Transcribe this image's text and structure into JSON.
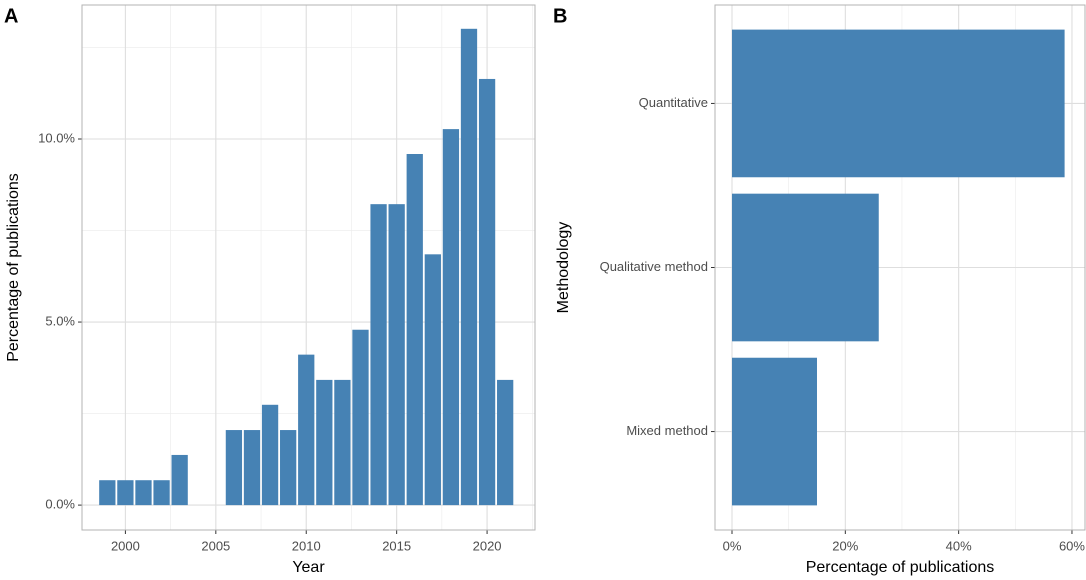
{
  "chart_data": [
    {
      "type": "bar",
      "tag": "A",
      "x_label": "Year",
      "y_label": "Percentage of publications",
      "color": "#4682b4",
      "grid": true,
      "x": [
        1999,
        2000,
        2001,
        2002,
        2003,
        2006,
        2007,
        2008,
        2009,
        2010,
        2011,
        2012,
        2013,
        2014,
        2015,
        2016,
        2017,
        2018,
        2019,
        2020,
        2021
      ],
      "values": [
        0.68,
        0.68,
        0.68,
        0.68,
        1.37,
        2.05,
        2.05,
        2.74,
        2.05,
        4.11,
        3.42,
        3.42,
        4.79,
        8.22,
        8.22,
        9.59,
        6.85,
        10.27,
        13.01,
        11.64,
        3.42
      ],
      "xlim": [
        1997.6,
        2022.65
      ],
      "xticks": [
        2000,
        2005,
        2010,
        2015,
        2020
      ],
      "xminor": [
        2002.5,
        2007.5,
        2012.5,
        2017.5,
        2022.5
      ],
      "ylim": [
        -0.68,
        13.66
      ],
      "yticks": [
        {
          "value": 0,
          "label": "0.0%"
        },
        {
          "value": 5,
          "label": "5.0%"
        },
        {
          "value": 10,
          "label": "10.0%"
        }
      ],
      "yminor": [
        2.5,
        7.5,
        12.5
      ]
    },
    {
      "type": "barh",
      "tag": "B",
      "x_label": "Percentage of publications",
      "y_label": "Methodology",
      "color": "#4682b4",
      "grid": true,
      "categories": [
        "Quantitative",
        "Qualitative method",
        "Mixed method"
      ],
      "values": [
        58.7,
        25.9,
        15.0
      ],
      "xlim": [
        -3,
        62.3
      ],
      "xticks": [
        {
          "value": 0,
          "label": "0%"
        },
        {
          "value": 20,
          "label": "20%"
        },
        {
          "value": 40,
          "label": "40%"
        },
        {
          "value": 60,
          "label": "60%"
        }
      ],
      "xminor": [
        10,
        30,
        50
      ]
    }
  ]
}
